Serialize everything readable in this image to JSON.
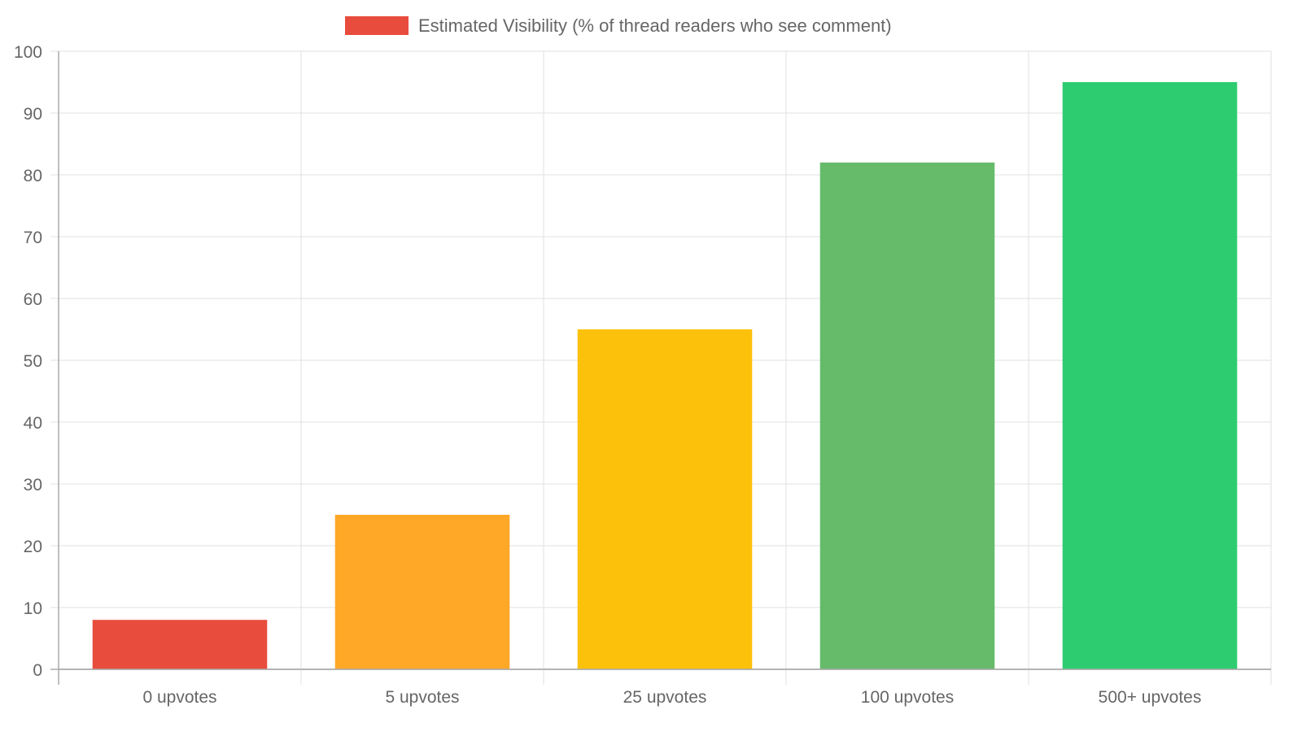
{
  "chart_data": {
    "type": "bar",
    "title": "",
    "xlabel": "",
    "ylabel": "",
    "categories": [
      "0 upvotes",
      "5 upvotes",
      "25 upvotes",
      "100 upvotes",
      "500+ upvotes"
    ],
    "series": [
      {
        "name": "Estimated Visibility (% of thread readers who see comment)",
        "values": [
          8,
          25,
          55,
          82,
          95
        ],
        "colors": [
          "#E84C3D",
          "#FFA726",
          "#FCC10A",
          "#66BB6A",
          "#2ECC71"
        ]
      }
    ],
    "ylim": [
      0,
      100
    ],
    "yticks": [
      0,
      10,
      20,
      30,
      40,
      50,
      60,
      70,
      80,
      90,
      100
    ],
    "grid": true,
    "legend_position": "top"
  }
}
